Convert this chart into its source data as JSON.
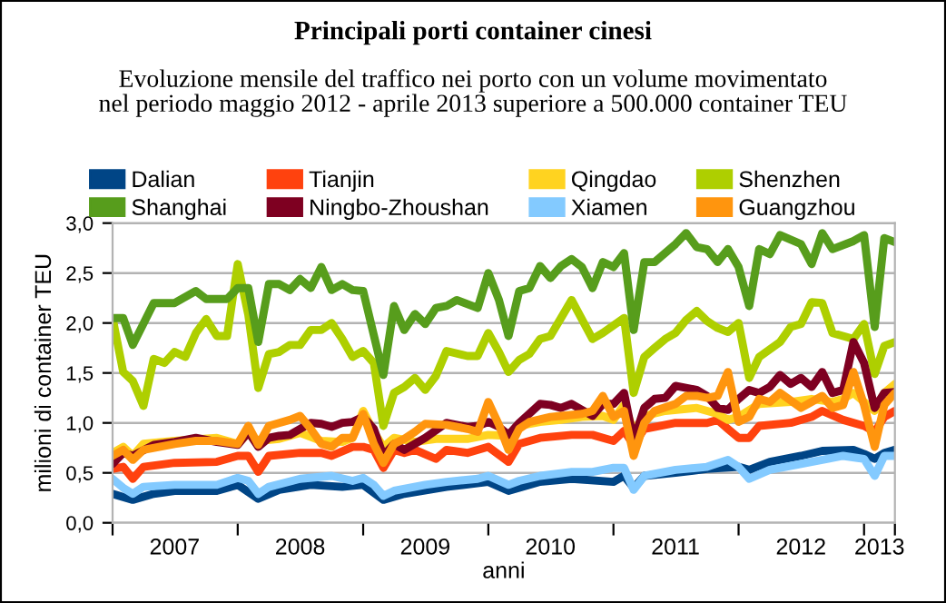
{
  "chart_data": {
    "type": "line",
    "title": "Principali porti container cinesi",
    "subtitle": "Evoluzione mensile del traffico nei porto con un volume movimentato\nnel periodo maggio 2012 - aprile 2013 superiore a 500.000 container TEU",
    "xlabel": "anni",
    "ylabel": "milioni di container TEU",
    "xlim": [
      "2007-01",
      "2013-04"
    ],
    "xticks": [
      {
        "value": "2007-01",
        "label": null
      },
      {
        "value": "2008-01",
        "label": null
      },
      {
        "value": "2009-01",
        "label": null
      },
      {
        "value": "2010-01",
        "label": null
      },
      {
        "value": "2011-01",
        "label": null
      },
      {
        "value": "2012-01",
        "label": null
      },
      {
        "value": "2013-01",
        "label": null
      },
      {
        "value": "2013-04",
        "label": null
      },
      {
        "value": "2007-07",
        "label": "2007"
      },
      {
        "value": "2008-07",
        "label": "2008"
      },
      {
        "value": "2009-07",
        "label": "2009"
      },
      {
        "value": "2010-07",
        "label": "2010"
      },
      {
        "value": "2011-07",
        "label": "2011"
      },
      {
        "value": "2012-07",
        "label": "2012"
      },
      {
        "value": "2013-02-15",
        "label": "2013"
      }
    ],
    "ylim": [
      0,
      3
    ],
    "yticks": [
      {
        "value": 0,
        "label": "0,0"
      },
      {
        "value": 0.5,
        "label": "0,5"
      },
      {
        "value": 1,
        "label": "1,0"
      },
      {
        "value": 1.5,
        "label": "1,5"
      },
      {
        "value": 2,
        "label": "2,0"
      },
      {
        "value": 2.5,
        "label": "2,5"
      },
      {
        "value": 3,
        "label": "3,0"
      }
    ],
    "grid": "y",
    "legend": "top",
    "marker": "none",
    "line_style": "solid",
    "series": [
      {
        "name": "Dalian",
        "color": "#004586",
        "x": [
          "2007-01",
          "2007-03",
          "2007-05",
          "2007-07",
          "2007-11",
          "2008-01",
          "2008-03",
          "2008-05",
          "2008-08",
          "2008-11",
          "2009-01",
          "2009-03",
          "2009-05",
          "2009-09",
          "2010-01",
          "2010-03",
          "2010-06",
          "2010-09",
          "2011-01",
          "2011-02",
          "2011-03",
          "2011-04",
          "2011-07",
          "2011-10",
          "2012-01",
          "2012-02",
          "2012-04",
          "2012-07",
          "2012-09",
          "2012-12",
          "2013-01",
          "2013-02",
          "2013-03",
          "2013-04"
        ],
        "values": [
          0.29,
          0.23,
          0.29,
          0.32,
          0.32,
          0.38,
          0.24,
          0.33,
          0.38,
          0.36,
          0.38,
          0.23,
          0.29,
          0.36,
          0.41,
          0.32,
          0.41,
          0.44,
          0.41,
          0.47,
          0.35,
          0.47,
          0.5,
          0.54,
          0.56,
          0.53,
          0.61,
          0.67,
          0.72,
          0.73,
          0.69,
          0.64,
          0.7,
          0.73
        ]
      },
      {
        "name": "Tianjin",
        "color": "#ff420e",
        "x": [
          "2007-01",
          "2007-02",
          "2007-03",
          "2007-04",
          "2007-07",
          "2007-11",
          "2008-01",
          "2008-02",
          "2008-03",
          "2008-04",
          "2008-07",
          "2008-09",
          "2008-10",
          "2008-12",
          "2009-01",
          "2009-02",
          "2009-03",
          "2009-04",
          "2009-05",
          "2009-06",
          "2009-08",
          "2009-09",
          "2009-11",
          "2010-01",
          "2010-03",
          "2010-04",
          "2010-06",
          "2010-09",
          "2010-11",
          "2011-01",
          "2011-02",
          "2011-03",
          "2011-04",
          "2011-07",
          "2011-10",
          "2011-11",
          "2011-12",
          "2012-01",
          "2012-02",
          "2012-03",
          "2012-06",
          "2012-08",
          "2012-09",
          "2012-11",
          "2013-01",
          "2013-02",
          "2013-03",
          "2013-04"
        ],
        "values": [
          0.54,
          0.56,
          0.44,
          0.56,
          0.6,
          0.61,
          0.67,
          0.67,
          0.51,
          0.67,
          0.7,
          0.7,
          0.67,
          0.76,
          0.76,
          0.73,
          0.55,
          0.73,
          0.7,
          0.73,
          0.64,
          0.73,
          0.7,
          0.76,
          0.61,
          0.79,
          0.85,
          0.88,
          0.88,
          0.82,
          0.92,
          0.78,
          0.94,
          1.0,
          1.0,
          1.03,
          0.94,
          0.85,
          0.85,
          0.97,
          1.0,
          1.06,
          1.12,
          1.03,
          0.97,
          0.91,
          1.06,
          1.12
        ]
      },
      {
        "name": "Qingdao",
        "color": "#ffd320",
        "x": [
          "2007-01",
          "2007-02",
          "2007-03",
          "2007-04",
          "2007-07",
          "2007-11",
          "2008-01",
          "2008-02",
          "2008-03",
          "2008-05",
          "2008-07",
          "2008-09",
          "2008-11",
          "2008-12",
          "2009-01",
          "2009-02",
          "2009-03",
          "2009-04",
          "2009-06",
          "2009-08",
          "2009-11",
          "2010-01",
          "2010-03",
          "2010-04",
          "2010-06",
          "2010-08",
          "2010-10",
          "2010-12",
          "2011-01",
          "2011-02",
          "2011-03",
          "2011-04",
          "2011-06",
          "2011-09",
          "2011-11",
          "2011-12",
          "2012-01",
          "2012-03",
          "2012-06",
          "2012-08",
          "2012-10",
          "2012-11",
          "2012-12",
          "2013-02",
          "2013-03",
          "2013-04"
        ],
        "values": [
          0.7,
          0.76,
          0.67,
          0.79,
          0.82,
          0.85,
          0.79,
          0.9,
          0.82,
          0.84,
          0.9,
          0.82,
          0.81,
          0.85,
          1.12,
          0.91,
          0.76,
          0.85,
          0.81,
          0.84,
          0.84,
          0.88,
          0.87,
          0.97,
          1.01,
          1.03,
          1.06,
          1.07,
          1.03,
          1.18,
          0.92,
          1.07,
          1.12,
          1.15,
          1.09,
          1.03,
          1.06,
          1.19,
          1.21,
          1.24,
          1.21,
          1.24,
          1.3,
          1.12,
          1.3,
          1.39
        ]
      },
      {
        "name": "Shenzhen",
        "color": "#aecf00",
        "x": [
          "2007-01",
          "2007-02",
          "2007-03",
          "2007-04",
          "2007-05",
          "2007-06",
          "2007-07",
          "2007-08",
          "2007-09",
          "2007-10",
          "2007-11",
          "2007-12",
          "2008-01",
          "2008-02",
          "2008-03",
          "2008-04",
          "2008-05",
          "2008-06",
          "2008-07",
          "2008-08",
          "2008-09",
          "2008-10",
          "2008-11",
          "2008-12",
          "2009-01",
          "2009-02",
          "2009-03",
          "2009-04",
          "2009-05",
          "2009-06",
          "2009-07",
          "2009-08",
          "2009-09",
          "2009-11",
          "2009-12",
          "2010-01",
          "2010-02",
          "2010-03",
          "2010-04",
          "2010-05",
          "2010-06",
          "2010-07",
          "2010-09",
          "2010-11",
          "2010-12",
          "2011-02",
          "2011-03",
          "2011-04",
          "2011-05",
          "2011-06",
          "2011-07",
          "2011-08",
          "2011-09",
          "2011-10",
          "2011-11",
          "2011-12",
          "2012-01",
          "2012-02",
          "2012-03",
          "2012-05",
          "2012-06",
          "2012-07",
          "2012-08",
          "2012-09",
          "2012-10",
          "2012-12",
          "2013-01",
          "2013-02",
          "2013-03",
          "2013-04"
        ],
        "values": [
          2.05,
          1.51,
          1.42,
          1.17,
          1.64,
          1.6,
          1.71,
          1.66,
          1.9,
          2.04,
          1.87,
          1.87,
          2.59,
          2.08,
          1.35,
          1.69,
          1.71,
          1.78,
          1.78,
          1.93,
          1.93,
          2.0,
          1.84,
          1.66,
          1.72,
          1.6,
          0.97,
          1.3,
          1.36,
          1.45,
          1.33,
          1.47,
          1.72,
          1.67,
          1.67,
          1.9,
          1.71,
          1.51,
          1.63,
          1.69,
          1.84,
          1.87,
          2.23,
          1.84,
          1.9,
          2.05,
          1.3,
          1.66,
          1.75,
          1.84,
          1.9,
          2.03,
          2.12,
          2.02,
          1.95,
          1.91,
          2.0,
          1.45,
          1.66,
          1.81,
          1.96,
          1.99,
          2.21,
          2.2,
          1.9,
          1.84,
          1.99,
          1.49,
          1.77,
          1.81
        ]
      },
      {
        "name": "Shanghai",
        "color": "#579d1c",
        "x": [
          "2007-01",
          "2007-02",
          "2007-03",
          "2007-05",
          "2007-07",
          "2007-09",
          "2007-10",
          "2007-12",
          "2008-01",
          "2008-02",
          "2008-03",
          "2008-04",
          "2008-05",
          "2008-06",
          "2008-07",
          "2008-08",
          "2008-09",
          "2008-10",
          "2008-11",
          "2008-12",
          "2009-01",
          "2009-03",
          "2009-04",
          "2009-05",
          "2009-06",
          "2009-07",
          "2009-08",
          "2009-09",
          "2009-10",
          "2009-12",
          "2010-01",
          "2010-02",
          "2010-03",
          "2010-04",
          "2010-05",
          "2010-06",
          "2010-07",
          "2010-08",
          "2010-09",
          "2010-10",
          "2010-11",
          "2010-12",
          "2011-01",
          "2011-02",
          "2011-03",
          "2011-04",
          "2011-05",
          "2011-07",
          "2011-08",
          "2011-09",
          "2011-10",
          "2011-11",
          "2011-12",
          "2012-01",
          "2012-02",
          "2012-03",
          "2012-04",
          "2012-05",
          "2012-07",
          "2012-08",
          "2012-09",
          "2012-10",
          "2012-12",
          "2013-01",
          "2013-02",
          "2013-03",
          "2013-04"
        ],
        "values": [
          2.05,
          2.05,
          1.78,
          2.2,
          2.2,
          2.32,
          2.24,
          2.24,
          2.35,
          2.35,
          1.81,
          2.39,
          2.39,
          2.33,
          2.44,
          2.35,
          2.56,
          2.33,
          2.39,
          2.33,
          2.32,
          1.48,
          2.17,
          1.93,
          2.09,
          1.99,
          2.15,
          2.17,
          2.23,
          2.15,
          2.5,
          2.23,
          1.87,
          2.32,
          2.35,
          2.57,
          2.45,
          2.57,
          2.64,
          2.56,
          2.35,
          2.61,
          2.56,
          2.7,
          1.93,
          2.61,
          2.61,
          2.79,
          2.9,
          2.76,
          2.74,
          2.61,
          2.74,
          2.56,
          2.17,
          2.74,
          2.69,
          2.88,
          2.79,
          2.59,
          2.9,
          2.74,
          2.82,
          2.88,
          1.96,
          2.85,
          2.81
        ]
      },
      {
        "name": "Ningbo-Zhoushan",
        "color": "#7e0021",
        "x": [
          "2007-01",
          "2007-02",
          "2007-03",
          "2007-05",
          "2007-07",
          "2007-09",
          "2007-11",
          "2008-01",
          "2008-02",
          "2008-03",
          "2008-04",
          "2008-05",
          "2008-06",
          "2008-07",
          "2008-08",
          "2008-09",
          "2008-10",
          "2008-11",
          "2008-12",
          "2009-01",
          "2009-02",
          "2009-03",
          "2009-04",
          "2009-05",
          "2009-07",
          "2009-09",
          "2009-11",
          "2009-12",
          "2010-01",
          "2010-02",
          "2010-03",
          "2010-04",
          "2010-06",
          "2010-07",
          "2010-08",
          "2010-09",
          "2010-11",
          "2010-12",
          "2011-01",
          "2011-02",
          "2011-03",
          "2011-04",
          "2011-05",
          "2011-06",
          "2011-07",
          "2011-09",
          "2011-10",
          "2011-11",
          "2011-12",
          "2012-01",
          "2012-02",
          "2012-03",
          "2012-04",
          "2012-05",
          "2012-06",
          "2012-07",
          "2012-08",
          "2012-09",
          "2012-10",
          "2012-11",
          "2012-12",
          "2013-01",
          "2013-02",
          "2013-03",
          "2013-04"
        ],
        "values": [
          0.59,
          0.7,
          0.67,
          0.78,
          0.81,
          0.85,
          0.81,
          0.78,
          0.91,
          0.76,
          0.85,
          0.87,
          0.88,
          0.94,
          1.0,
          0.99,
          0.96,
          1.0,
          1.01,
          1.06,
          0.94,
          0.67,
          0.79,
          0.73,
          0.85,
          1.0,
          0.96,
          0.97,
          1.01,
          0.96,
          0.88,
          1.0,
          1.19,
          1.18,
          1.15,
          1.19,
          1.07,
          1.19,
          1.19,
          1.3,
          0.82,
          1.15,
          1.24,
          1.25,
          1.37,
          1.33,
          1.27,
          1.15,
          1.13,
          1.24,
          1.33,
          1.3,
          1.36,
          1.48,
          1.39,
          1.45,
          1.36,
          1.51,
          1.3,
          1.33,
          1.81,
          1.6,
          1.15,
          1.3,
          1.31
        ]
      },
      {
        "name": "Xiamen",
        "color": "#83caff",
        "x": [
          "2007-01",
          "2007-02",
          "2007-03",
          "2007-04",
          "2007-07",
          "2007-11",
          "2008-01",
          "2008-02",
          "2008-03",
          "2008-04",
          "2008-07",
          "2008-10",
          "2008-12",
          "2009-01",
          "2009-02",
          "2009-03",
          "2009-04",
          "2009-07",
          "2009-09",
          "2009-12",
          "2010-01",
          "2010-03",
          "2010-04",
          "2010-06",
          "2010-09",
          "2010-11",
          "2011-01",
          "2011-02",
          "2011-03",
          "2011-04",
          "2011-07",
          "2011-10",
          "2011-12",
          "2012-01",
          "2012-02",
          "2012-04",
          "2012-07",
          "2012-09",
          "2012-11",
          "2013-01",
          "2013-02",
          "2013-03",
          "2013-04"
        ],
        "values": [
          0.44,
          0.35,
          0.29,
          0.36,
          0.38,
          0.38,
          0.45,
          0.42,
          0.29,
          0.36,
          0.44,
          0.47,
          0.42,
          0.45,
          0.38,
          0.27,
          0.32,
          0.38,
          0.41,
          0.44,
          0.47,
          0.38,
          0.42,
          0.47,
          0.51,
          0.51,
          0.55,
          0.55,
          0.33,
          0.47,
          0.53,
          0.56,
          0.63,
          0.56,
          0.44,
          0.53,
          0.59,
          0.63,
          0.67,
          0.64,
          0.47,
          0.67,
          0.67
        ]
      },
      {
        "name": "Guangzhou",
        "color": "#ff950e",
        "x": [
          "2007-01",
          "2007-02",
          "2007-03",
          "2007-04",
          "2007-07",
          "2007-09",
          "2007-11",
          "2008-01",
          "2008-02",
          "2008-03",
          "2008-04",
          "2008-05",
          "2008-06",
          "2008-07",
          "2008-08",
          "2008-09",
          "2008-10",
          "2008-11",
          "2008-12",
          "2009-01",
          "2009-02",
          "2009-03",
          "2009-04",
          "2009-05",
          "2009-06",
          "2009-07",
          "2009-09",
          "2009-11",
          "2009-12",
          "2010-01",
          "2010-02",
          "2010-03",
          "2010-04",
          "2010-05",
          "2010-07",
          "2010-08",
          "2010-10",
          "2010-11",
          "2010-12",
          "2011-01",
          "2011-02",
          "2011-03",
          "2011-04",
          "2011-05",
          "2011-07",
          "2011-08",
          "2011-09",
          "2011-10",
          "2011-11",
          "2011-12",
          "2012-01",
          "2012-02",
          "2012-03",
          "2012-04",
          "2012-05",
          "2012-07",
          "2012-08",
          "2012-09",
          "2012-10",
          "2012-11",
          "2012-12",
          "2013-01",
          "2013-02",
          "2013-03",
          "2013-04"
        ],
        "values": [
          0.67,
          0.73,
          0.63,
          0.73,
          0.79,
          0.82,
          0.82,
          0.79,
          0.97,
          0.78,
          0.97,
          1.0,
          1.03,
          1.07,
          0.94,
          0.79,
          0.76,
          0.85,
          0.85,
          1.09,
          0.79,
          0.6,
          0.79,
          0.84,
          0.91,
          0.99,
          0.98,
          0.94,
          0.91,
          1.21,
          0.98,
          0.73,
          0.94,
          1.01,
          1.06,
          1.07,
          1.09,
          1.12,
          1.27,
          1.06,
          1.12,
          0.67,
          1.0,
          1.12,
          1.19,
          1.27,
          1.27,
          1.25,
          1.27,
          1.51,
          1.01,
          1.06,
          1.24,
          1.21,
          1.3,
          1.15,
          1.21,
          1.27,
          1.15,
          1.18,
          1.51,
          1.18,
          0.76,
          1.18,
          1.3
        ]
      }
    ]
  }
}
